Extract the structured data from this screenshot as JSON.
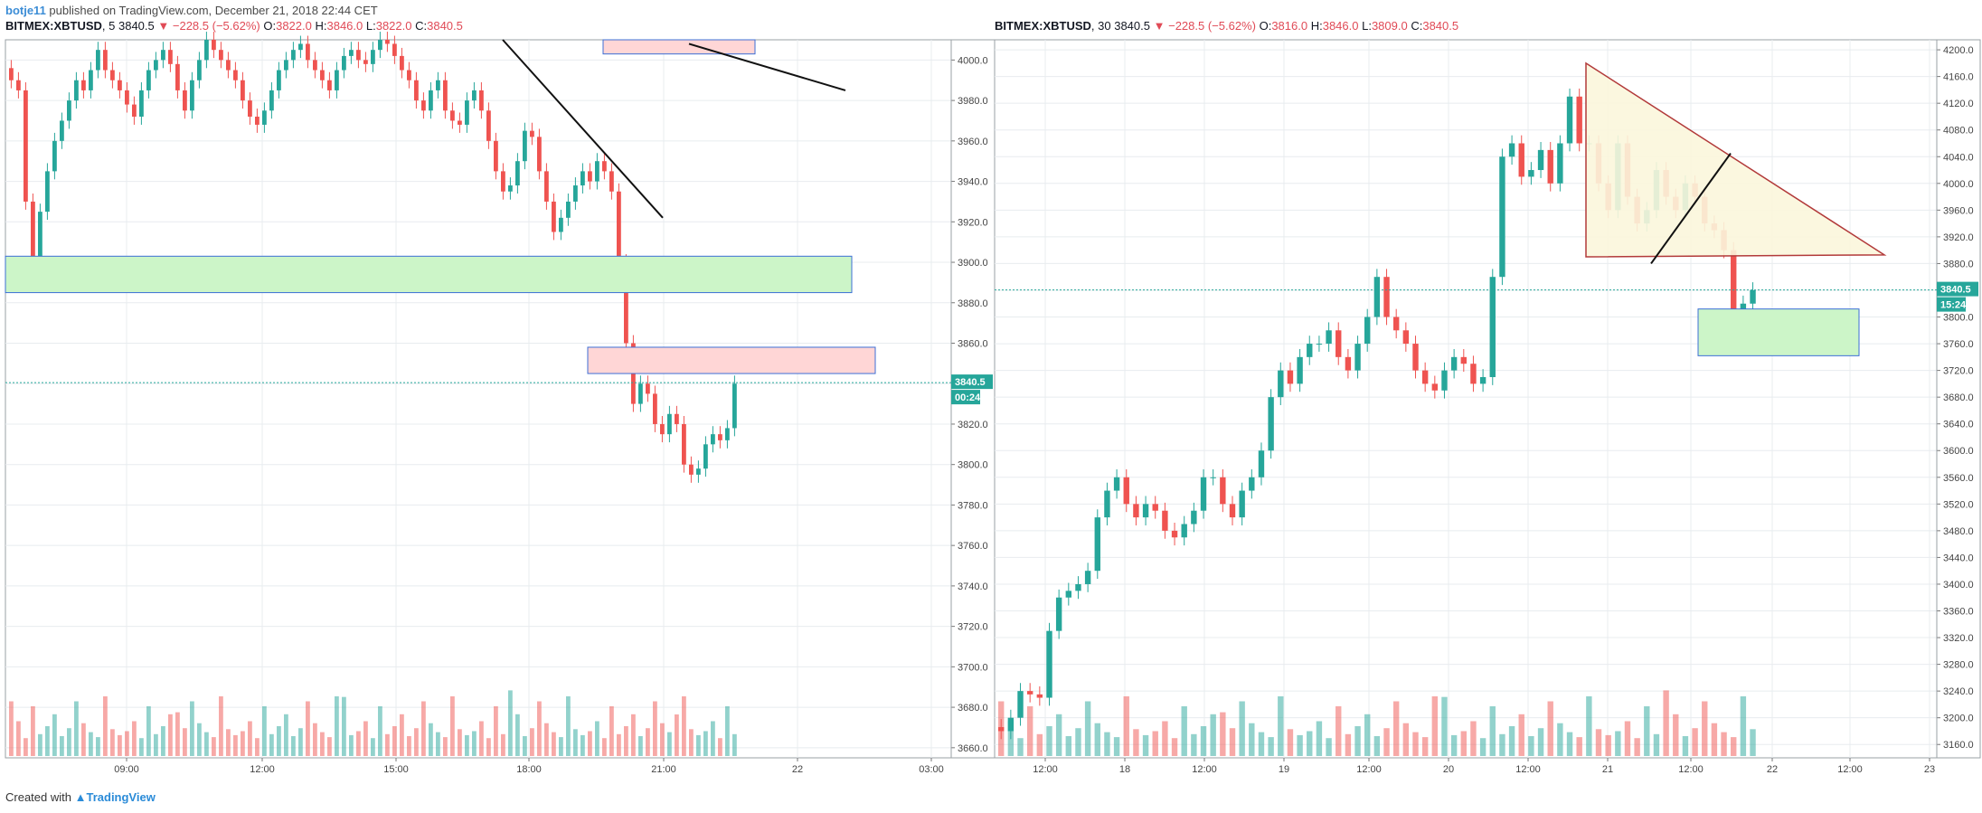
{
  "header": {
    "author": "botje11",
    "published_text": "published on TradingView.com, December 21, 2018 22:44 CET"
  },
  "footer": {
    "created_with": "Created with",
    "brand": "TradingView"
  },
  "colors": {
    "up": "#26a69a",
    "down": "#ef5350",
    "last_price": "#26a69a",
    "grid": "#e8ecef"
  },
  "chart_data": [
    {
      "type": "candlestick",
      "symbol": "BITMEX:XBTUSD",
      "interval": "5",
      "last": "3840.5",
      "change": "−228.5 (−5.62%)",
      "open": "3822.0",
      "high": "3846.0",
      "low": "3822.0",
      "close": "3840.5",
      "price_label": "3840.5",
      "countdown": "00:24",
      "y_ticks": [
        "4000.0",
        "3980.0",
        "3960.0",
        "3940.0",
        "3920.0",
        "3900.0",
        "3880.0",
        "3860.0",
        "3840.0",
        "3820.0",
        "3800.0",
        "3780.0",
        "3760.0",
        "3740.0",
        "3720.0",
        "3700.0",
        "3680.0",
        "3660.0"
      ],
      "x_ticks": [
        "09:00",
        "12:00",
        "15:00",
        "18:00",
        "21:00",
        "22",
        "03:00"
      ],
      "ylim": [
        3655,
        4010
      ],
      "grid": true,
      "approx_closes": [
        3990,
        3985,
        3930,
        3900,
        3925,
        3945,
        3960,
        3970,
        3980,
        3990,
        3985,
        3995,
        4005,
        3995,
        3990,
        3985,
        3978,
        3972,
        3985,
        3995,
        4000,
        4005,
        3998,
        3985,
        3975,
        3990,
        4000,
        4010,
        4005,
        4000,
        3995,
        3990,
        3980,
        3972,
        3968,
        3975,
        3985,
        3995,
        4000,
        4005,
        4008,
        4000,
        3995,
        3990,
        3985,
        3995,
        4002,
        4005,
        4000,
        3998,
        4005,
        4010,
        4008,
        4002,
        3995,
        3990,
        3980,
        3975,
        3985,
        3990,
        3975,
        3970,
        3968,
        3980,
        3985,
        3975,
        3960,
        3945,
        3935,
        3938,
        3950,
        3965,
        3962,
        3945,
        3930,
        3915,
        3922,
        3930,
        3938,
        3945,
        3940,
        3950,
        3945,
        3935,
        3900,
        3860,
        3830,
        3840,
        3835,
        3820,
        3815,
        3825,
        3820,
        3800,
        3795,
        3798,
        3810,
        3815,
        3812,
        3818,
        3840
      ]
    },
    {
      "type": "candlestick",
      "symbol": "BITMEX:XBTUSD",
      "interval": "30",
      "last": "3840.5",
      "change": "−228.5 (−5.62%)",
      "open": "3816.0",
      "high": "3846.0",
      "low": "3809.0",
      "close": "3840.5",
      "price_label": "3840.5",
      "countdown": "15:24",
      "y_ticks": [
        "4200.0",
        "4160.0",
        "4120.0",
        "4080.0",
        "4040.0",
        "4000.0",
        "3960.0",
        "3920.0",
        "3880.0",
        "3840.0",
        "3800.0",
        "3760.0",
        "3720.0",
        "3680.0",
        "3640.0",
        "3600.0",
        "3560.0",
        "3520.0",
        "3480.0",
        "3440.0",
        "3400.0",
        "3360.0",
        "3320.0",
        "3280.0",
        "3240.0",
        "3200.0",
        "3160.0"
      ],
      "x_ticks": [
        "12:00",
        "18",
        "12:00",
        "19",
        "12:00",
        "20",
        "12:00",
        "21",
        "12:00",
        "22",
        "12:00",
        "23"
      ],
      "ylim": [
        3140,
        4215
      ],
      "grid": true,
      "approx_closes": [
        3180,
        3200,
        3240,
        3235,
        3230,
        3330,
        3380,
        3390,
        3400,
        3420,
        3500,
        3540,
        3560,
        3520,
        3500,
        3520,
        3510,
        3480,
        3470,
        3490,
        3510,
        3560,
        3560,
        3520,
        3500,
        3540,
        3560,
        3600,
        3680,
        3720,
        3700,
        3740,
        3760,
        3760,
        3780,
        3740,
        3720,
        3760,
        3800,
        3860,
        3800,
        3780,
        3760,
        3720,
        3700,
        3690,
        3720,
        3740,
        3730,
        3700,
        3710,
        3860,
        4040,
        4060,
        4010,
        4020,
        4050,
        4000,
        4060,
        4130,
        4060,
        4060,
        4000,
        3960,
        4060,
        3980,
        3940,
        3960,
        4020,
        3980,
        3960,
        4000,
        3980,
        3940,
        3930,
        3900,
        3800,
        3820,
        3840
      ]
    }
  ]
}
